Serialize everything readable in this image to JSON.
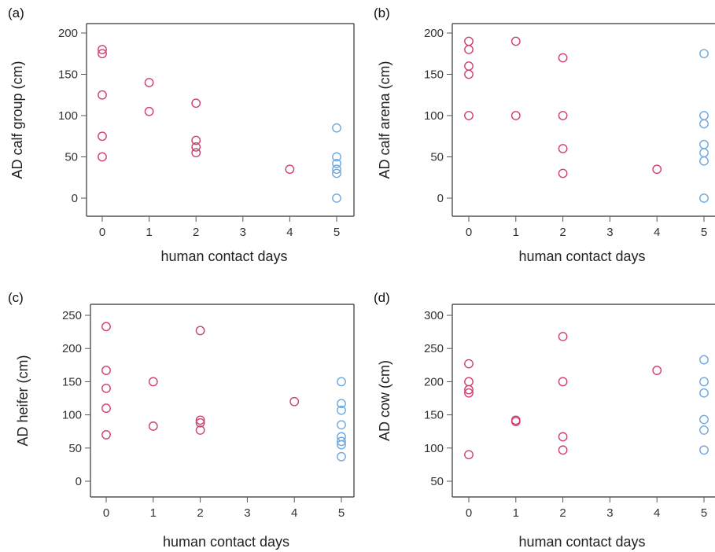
{
  "colors": {
    "group_a": "#d0406a",
    "group_b": "#6fa8dc",
    "axis": "#555555",
    "frame": "#333333"
  },
  "chart_data": [
    {
      "type": "scatter",
      "panel_label": "(a)",
      "xlabel": "human contact days",
      "ylabel": "AD calf group (cm)",
      "xticks": [
        0,
        1,
        2,
        3,
        4,
        5
      ],
      "yticks": [
        0,
        50,
        100,
        150,
        200
      ],
      "xlim": [
        0,
        5
      ],
      "ylim": [
        0,
        200
      ],
      "series": [
        {
          "color": "#d0406a",
          "points": [
            [
              0,
              180
            ],
            [
              0,
              175
            ],
            [
              0,
              125
            ],
            [
              0,
              75
            ],
            [
              0,
              50
            ],
            [
              1,
              140
            ],
            [
              1,
              105
            ],
            [
              2,
              115
            ],
            [
              2,
              70
            ],
            [
              2,
              62
            ],
            [
              2,
              55
            ],
            [
              4,
              35
            ]
          ]
        },
        {
          "color": "#6fa8dc",
          "points": [
            [
              5,
              85
            ],
            [
              5,
              50
            ],
            [
              5,
              42
            ],
            [
              5,
              35
            ],
            [
              5,
              30
            ],
            [
              5,
              0
            ]
          ]
        }
      ]
    },
    {
      "type": "scatter",
      "panel_label": "(b)",
      "xlabel": "human contact days",
      "ylabel": "AD calf arena (cm)",
      "xticks": [
        0,
        1,
        2,
        3,
        4,
        5
      ],
      "yticks": [
        0,
        50,
        100,
        150,
        200
      ],
      "xlim": [
        0,
        5
      ],
      "ylim": [
        0,
        200
      ],
      "series": [
        {
          "color": "#d0406a",
          "points": [
            [
              0,
              190
            ],
            [
              0,
              180
            ],
            [
              0,
              160
            ],
            [
              0,
              150
            ],
            [
              0,
              100
            ],
            [
              1,
              190
            ],
            [
              1,
              100
            ],
            [
              2,
              170
            ],
            [
              2,
              100
            ],
            [
              2,
              60
            ],
            [
              2,
              30
            ],
            [
              4,
              35
            ]
          ]
        },
        {
          "color": "#6fa8dc",
          "points": [
            [
              5,
              175
            ],
            [
              5,
              100
            ],
            [
              5,
              90
            ],
            [
              5,
              65
            ],
            [
              5,
              55
            ],
            [
              5,
              45
            ],
            [
              5,
              0
            ]
          ]
        }
      ]
    },
    {
      "type": "scatter",
      "panel_label": "(c)",
      "xlabel": "human contact days",
      "ylabel": "AD heifer (cm)",
      "xticks": [
        0,
        1,
        2,
        3,
        4,
        5
      ],
      "yticks": [
        0,
        50,
        100,
        150,
        200,
        250
      ],
      "xlim": [
        0,
        5
      ],
      "ylim": [
        0,
        250
      ],
      "series": [
        {
          "color": "#d0406a",
          "points": [
            [
              0,
              233
            ],
            [
              0,
              167
            ],
            [
              0,
              140
            ],
            [
              0,
              110
            ],
            [
              0,
              70
            ],
            [
              1,
              150
            ],
            [
              1,
              83
            ],
            [
              2,
              227
            ],
            [
              2,
              92
            ],
            [
              2,
              88
            ],
            [
              2,
              77
            ],
            [
              4,
              120
            ]
          ]
        },
        {
          "color": "#6fa8dc",
          "points": [
            [
              5,
              150
            ],
            [
              5,
              117
            ],
            [
              5,
              107
            ],
            [
              5,
              85
            ],
            [
              5,
              67
            ],
            [
              5,
              60
            ],
            [
              5,
              55
            ],
            [
              5,
              37
            ]
          ]
        }
      ]
    },
    {
      "type": "scatter",
      "panel_label": "(d)",
      "xlabel": "human contact days",
      "ylabel": "AD cow (cm)",
      "xticks": [
        0,
        1,
        2,
        3,
        4,
        5
      ],
      "yticks": [
        50,
        100,
        150,
        200,
        250,
        300
      ],
      "xlim": [
        0,
        5
      ],
      "ylim": [
        50,
        300
      ],
      "series": [
        {
          "color": "#d0406a",
          "points": [
            [
              0,
              227
            ],
            [
              0,
              200
            ],
            [
              0,
              188
            ],
            [
              0,
              183
            ],
            [
              0,
              90
            ],
            [
              1,
              142
            ],
            [
              1,
              140
            ],
            [
              2,
              268
            ],
            [
              2,
              200
            ],
            [
              2,
              117
            ],
            [
              2,
              97
            ],
            [
              4,
              217
            ]
          ]
        },
        {
          "color": "#6fa8dc",
          "points": [
            [
              5,
              233
            ],
            [
              5,
              200
            ],
            [
              5,
              183
            ],
            [
              5,
              143
            ],
            [
              5,
              127
            ],
            [
              5,
              97
            ]
          ]
        }
      ]
    }
  ]
}
